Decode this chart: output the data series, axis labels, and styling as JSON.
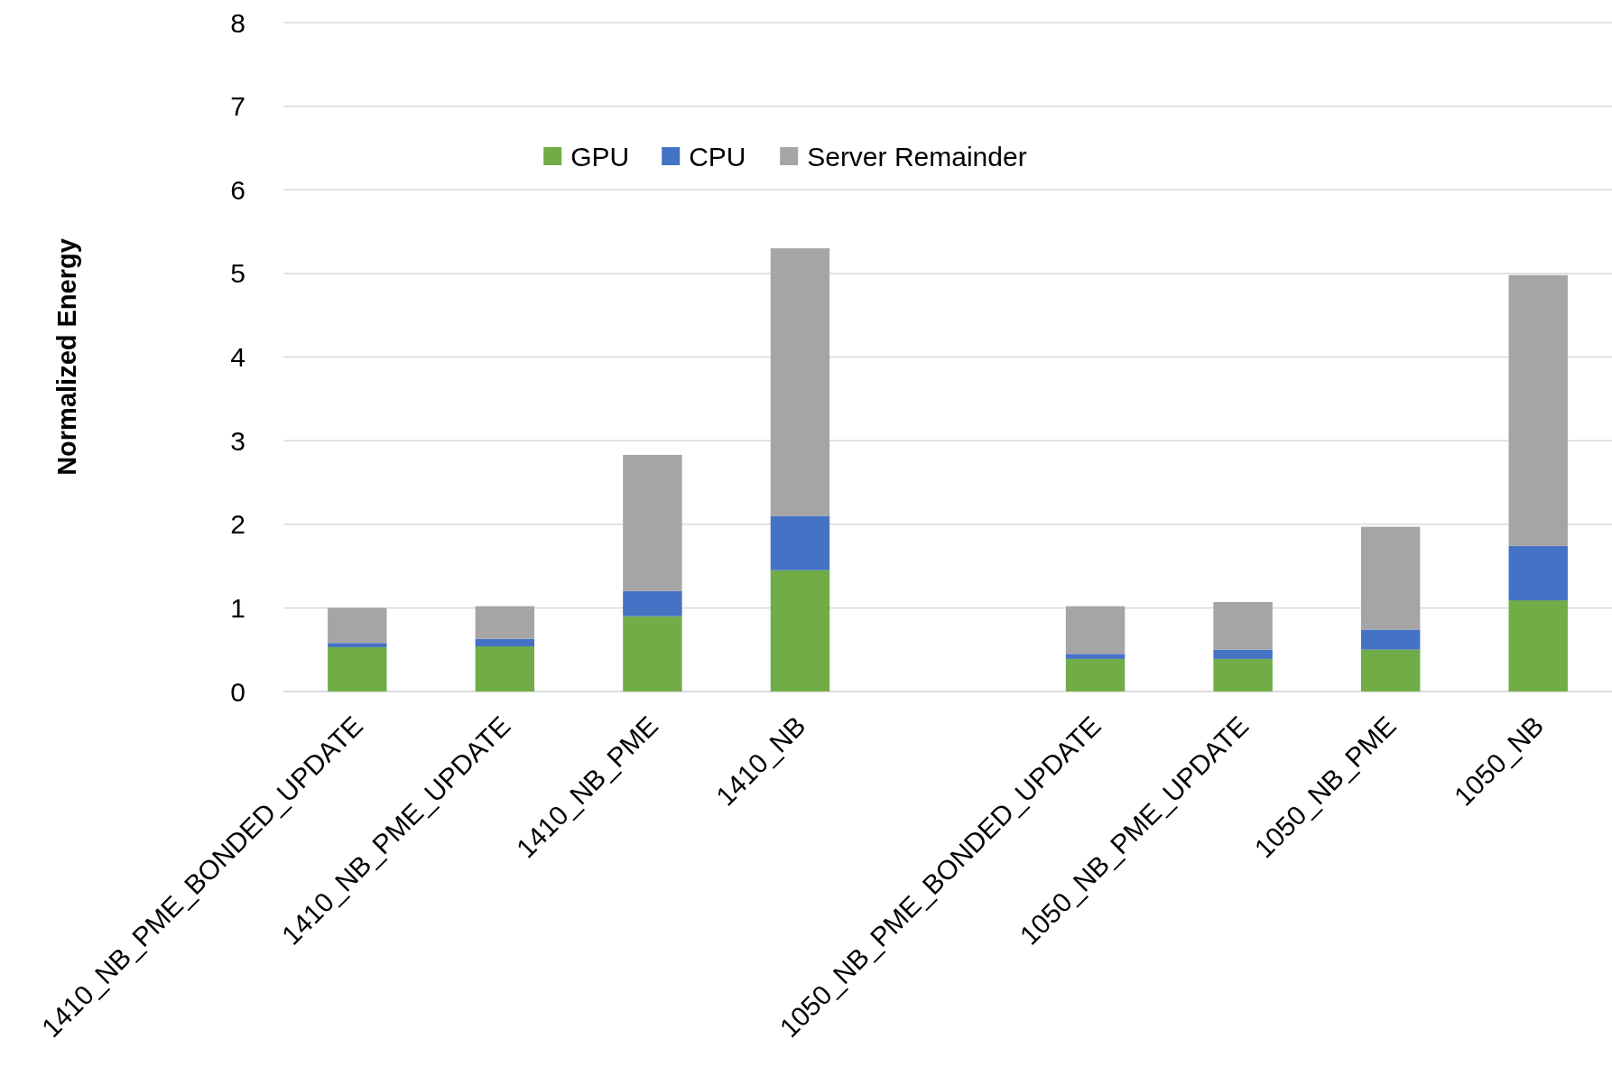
{
  "chart_data": {
    "type": "bar",
    "stacked": true,
    "ylabel": "Normalized Energy",
    "categories": [
      "1410_NB_PME_BONDED_UPDATE",
      "1410_NB_PME_UPDATE",
      "1410_NB_PME",
      "1410_NB",
      null,
      "1050_NB_PME_BONDED_UPDATE",
      "1050_NB_PME_UPDATE",
      "1050_NB_PME",
      "1050_NB"
    ],
    "series": [
      {
        "name": "GPU",
        "color": "#70ad47",
        "values": [
          0.53,
          0.54,
          0.9,
          1.45,
          null,
          0.39,
          0.39,
          0.5,
          1.09
        ]
      },
      {
        "name": "CPU",
        "color": "#4472c4",
        "values": [
          0.05,
          0.09,
          0.3,
          0.65,
          null,
          0.06,
          0.11,
          0.24,
          0.65
        ]
      },
      {
        "name": "Server Remainder",
        "color": "#a5a5a5",
        "values": [
          0.42,
          0.39,
          1.63,
          3.2,
          null,
          0.57,
          0.57,
          1.23,
          3.24
        ]
      }
    ],
    "ylim": [
      0,
      8
    ],
    "yticks": [
      0,
      1,
      2,
      3,
      4,
      5,
      6,
      7,
      8
    ],
    "grid": "y",
    "legend": "top"
  }
}
